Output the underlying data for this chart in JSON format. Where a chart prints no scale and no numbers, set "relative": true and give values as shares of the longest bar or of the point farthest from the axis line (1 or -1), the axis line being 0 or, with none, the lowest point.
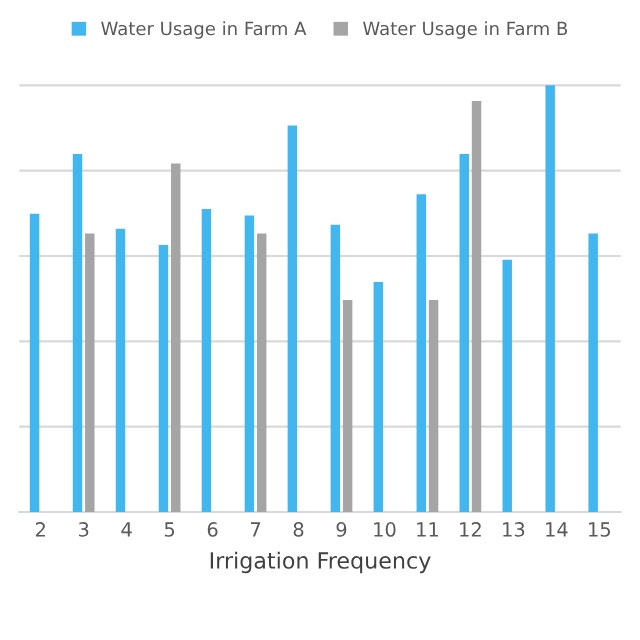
{
  "chart_data": {
    "type": "bar",
    "relative": true,
    "xlabel": "Irrigation Frequency",
    "categories": [
      "2",
      "3",
      "4",
      "5",
      "6",
      "7",
      "8",
      "9",
      "10",
      "11",
      "12",
      "13",
      "14",
      "15"
    ],
    "series": [
      {
        "name": "Water Usage in Farm A",
        "color": "#41b6ef",
        "values": [
          0.699,
          0.839,
          0.664,
          0.626,
          0.71,
          0.695,
          0.906,
          0.673,
          0.539,
          0.745,
          0.839,
          0.591,
          1.0,
          0.653
        ]
      },
      {
        "name": "Water Usage in Farm B",
        "color": "#a5a5a5",
        "values": [
          null,
          0.653,
          null,
          0.817,
          null,
          0.653,
          null,
          0.497,
          null,
          0.497,
          0.963,
          null,
          null,
          null
        ]
      }
    ],
    "grid": "y",
    "legend": "top"
  }
}
